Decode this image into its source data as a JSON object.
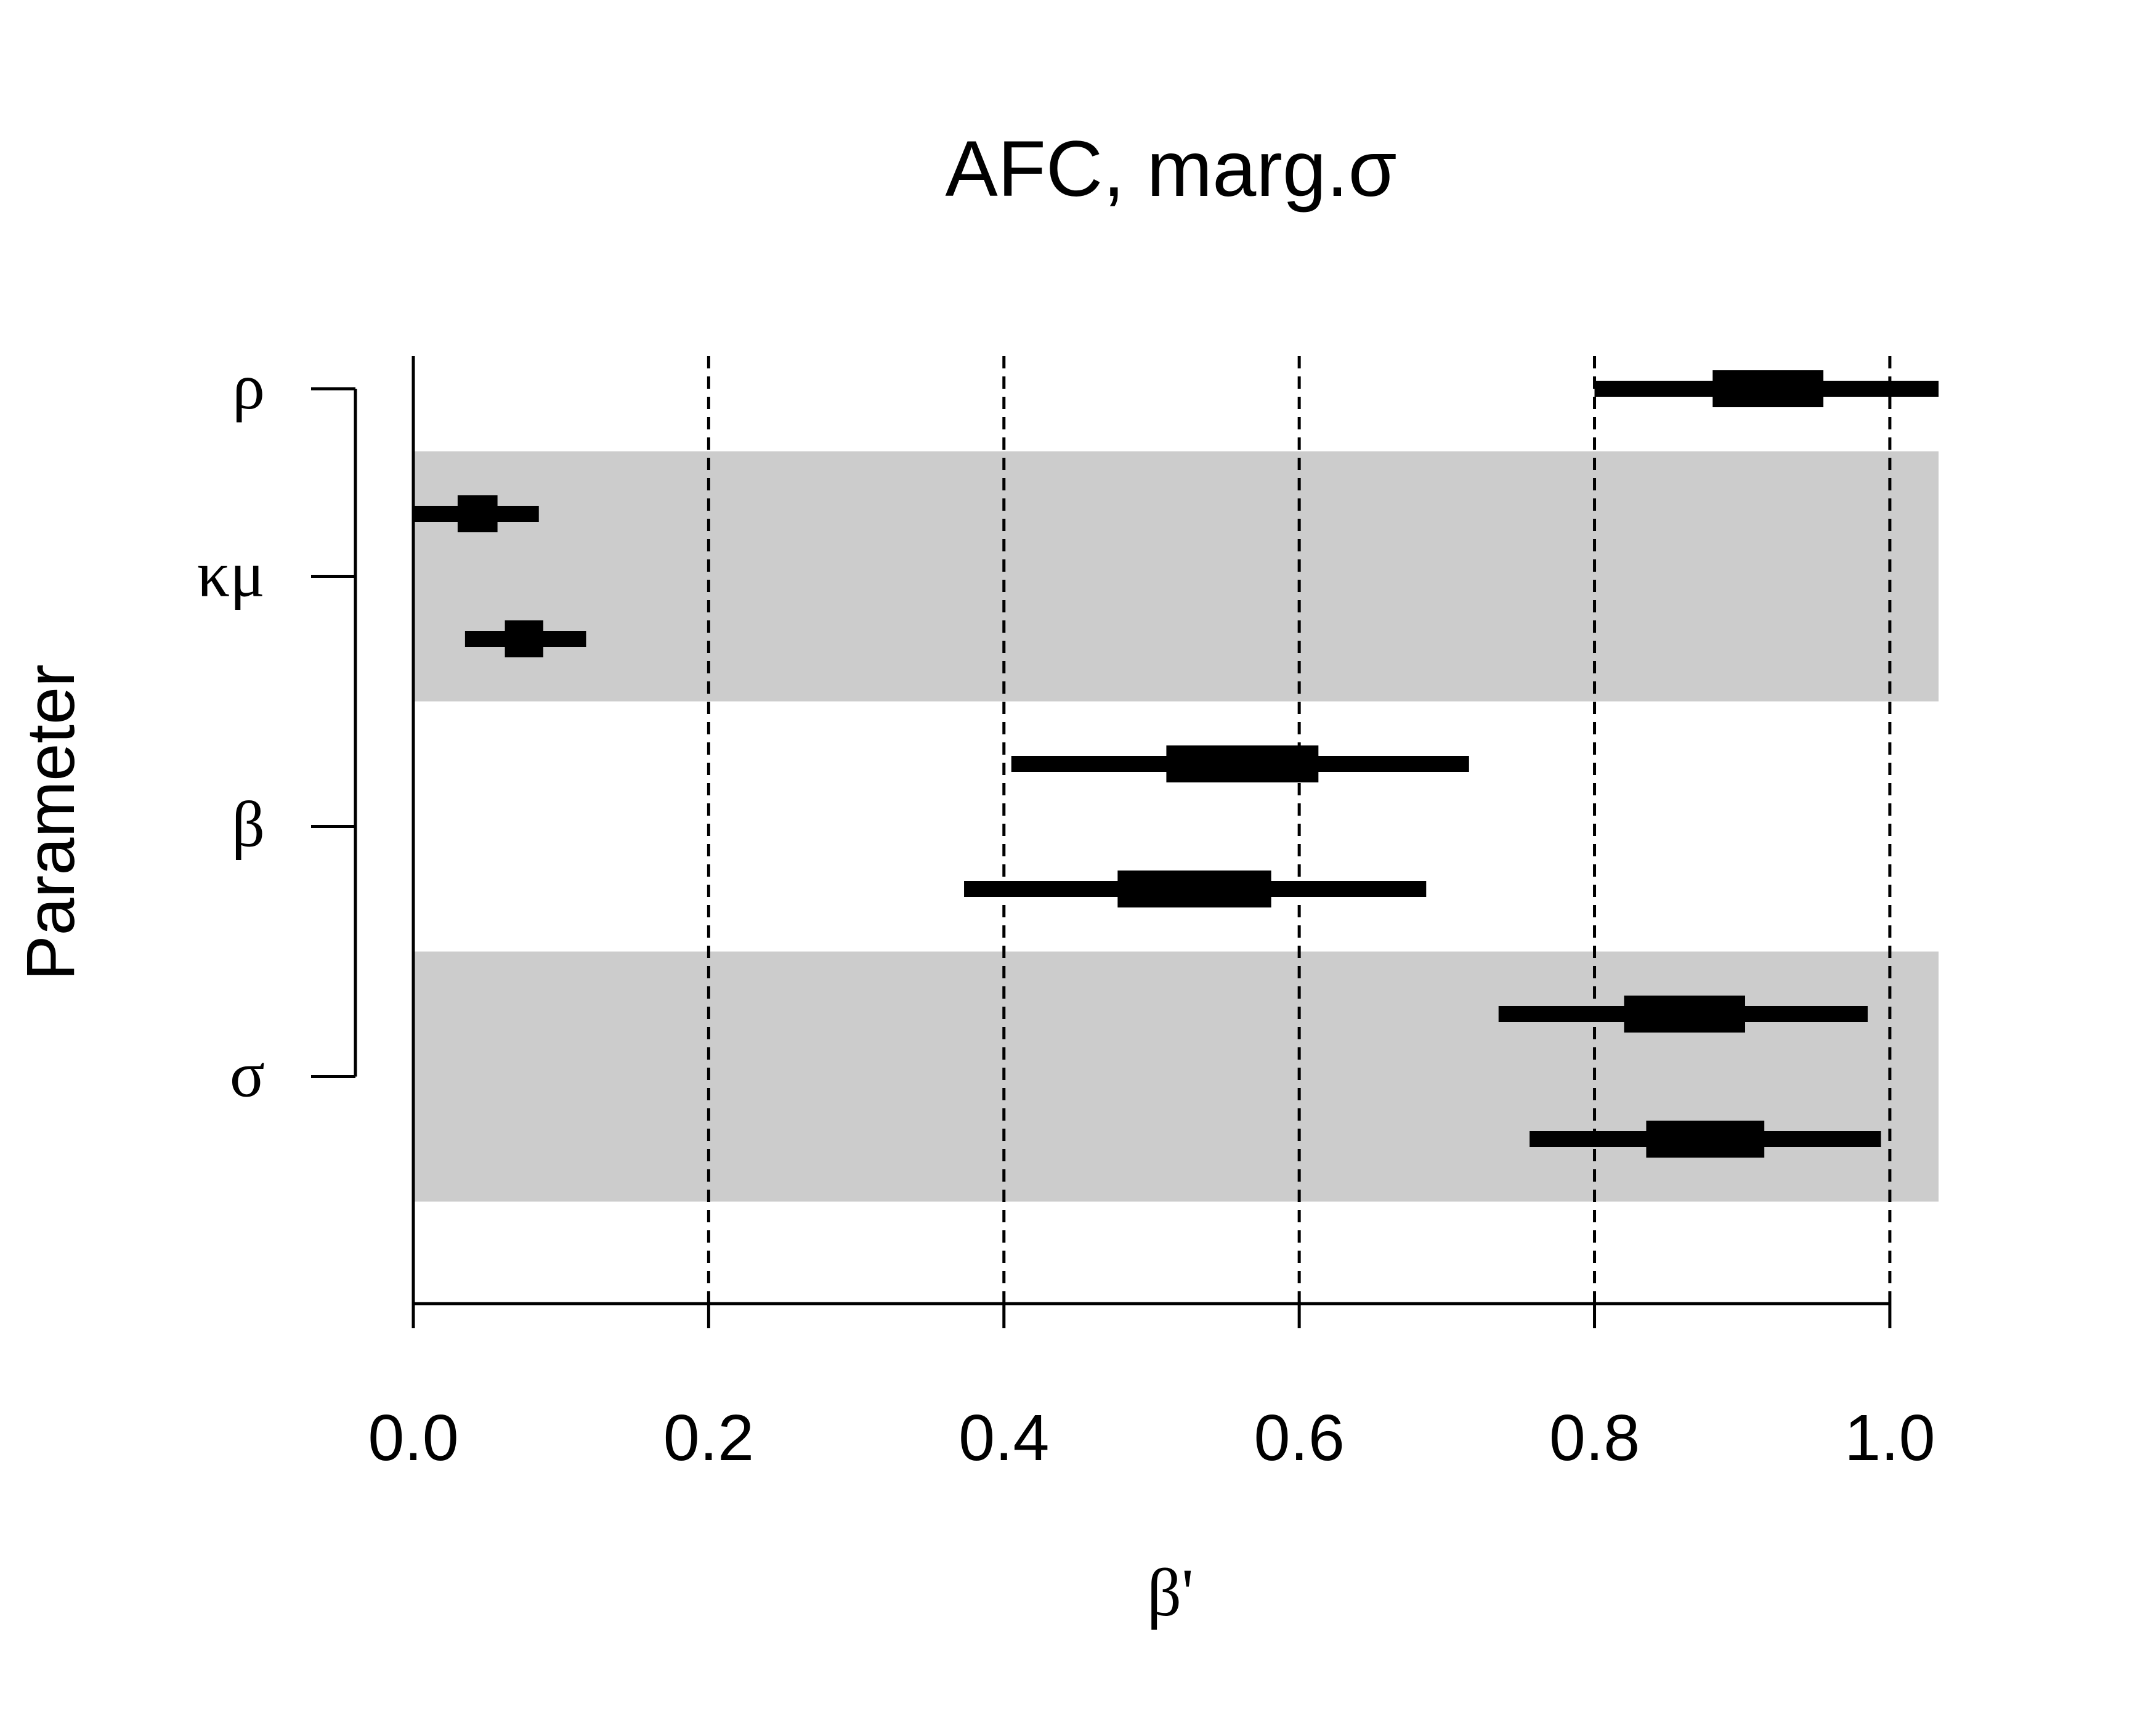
{
  "chart_data": {
    "type": "interval",
    "title": "AFC, marg.σ",
    "xlabel": "β'",
    "ylabel": "Parameter",
    "xlim": [
      0.0,
      1.033
    ],
    "xticks": [
      0.0,
      0.2,
      0.4,
      0.6,
      0.8,
      1.0
    ],
    "xtick_labels": [
      "0.0",
      "0.2",
      "0.4",
      "0.6",
      "0.8",
      "1.0"
    ],
    "reference_lines": [
      0.2,
      0.4,
      0.6,
      0.8,
      1.0
    ],
    "grid": false,
    "groups": [
      {
        "label": "ρ",
        "shaded": false,
        "intervals": [
          {
            "outer": [
              0.8,
              1.033
            ],
            "inner": [
              0.88,
              0.955
            ]
          }
        ]
      },
      {
        "label": "κμ",
        "shaded": true,
        "intervals": [
          {
            "outer": [
              0.0,
              0.085
            ],
            "inner": [
              0.03,
              0.057
            ]
          },
          {
            "outer": [
              0.035,
              0.117
            ],
            "inner": [
              0.062,
              0.088
            ]
          }
        ]
      },
      {
        "label": "β",
        "shaded": false,
        "intervals": [
          {
            "outer": [
              0.405,
              0.715
            ],
            "inner": [
              0.51,
              0.613
            ]
          },
          {
            "outer": [
              0.373,
              0.686
            ],
            "inner": [
              0.477,
              0.581
            ]
          }
        ]
      },
      {
        "label": "σ",
        "shaded": true,
        "intervals": [
          {
            "outer": [
              0.735,
              0.985
            ],
            "inner": [
              0.82,
              0.902
            ]
          },
          {
            "outer": [
              0.756,
              0.994
            ],
            "inner": [
              0.835,
              0.915
            ]
          }
        ]
      }
    ]
  }
}
